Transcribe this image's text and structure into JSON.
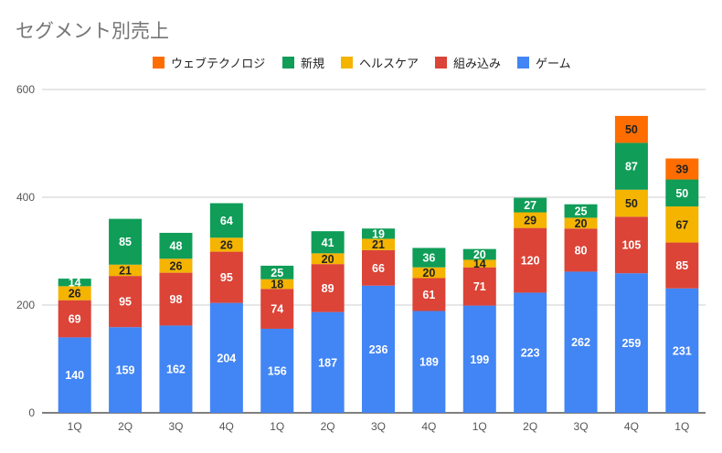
{
  "chart_data": {
    "type": "bar",
    "stacked": true,
    "title": "セグメント別売上",
    "categories": [
      "1Q",
      "2Q",
      "3Q",
      "4Q",
      "1Q",
      "2Q",
      "3Q",
      "4Q",
      "1Q",
      "2Q",
      "3Q",
      "4Q",
      "1Q"
    ],
    "series": [
      {
        "name": "ゲーム",
        "color": "#4285f4",
        "label_color": "#ffffff",
        "values": [
          140,
          159,
          162,
          204,
          156,
          187,
          236,
          189,
          199,
          223,
          262,
          259,
          231
        ]
      },
      {
        "name": "組み込み",
        "color": "#db4437",
        "label_color": "#ffffff",
        "values": [
          69,
          95,
          98,
          95,
          74,
          89,
          66,
          61,
          71,
          120,
          80,
          105,
          85
        ]
      },
      {
        "name": "ヘルスケア",
        "color": "#f4b400",
        "label_color": "#222222",
        "values": [
          26,
          21,
          26,
          26,
          18,
          20,
          21,
          20,
          14,
          29,
          20,
          50,
          67
        ]
      },
      {
        "name": "新規",
        "color": "#0f9d58",
        "label_color": "#ffffff",
        "values": [
          14,
          85,
          48,
          64,
          25,
          41,
          19,
          36,
          20,
          27,
          25,
          87,
          50
        ]
      },
      {
        "name": "ウェブテクノロジ",
        "color": "#ff6d01",
        "label_color": "#222222",
        "values": [
          0,
          0,
          0,
          0,
          0,
          0,
          0,
          0,
          0,
          0,
          0,
          50,
          39
        ]
      }
    ],
    "legend_order": [
      4,
      3,
      2,
      1,
      0
    ],
    "ylim": [
      0,
      600
    ],
    "yticks": [
      0,
      200,
      400,
      600
    ],
    "xlabel": "",
    "ylabel": "",
    "grid": true,
    "legend_position": "top"
  }
}
